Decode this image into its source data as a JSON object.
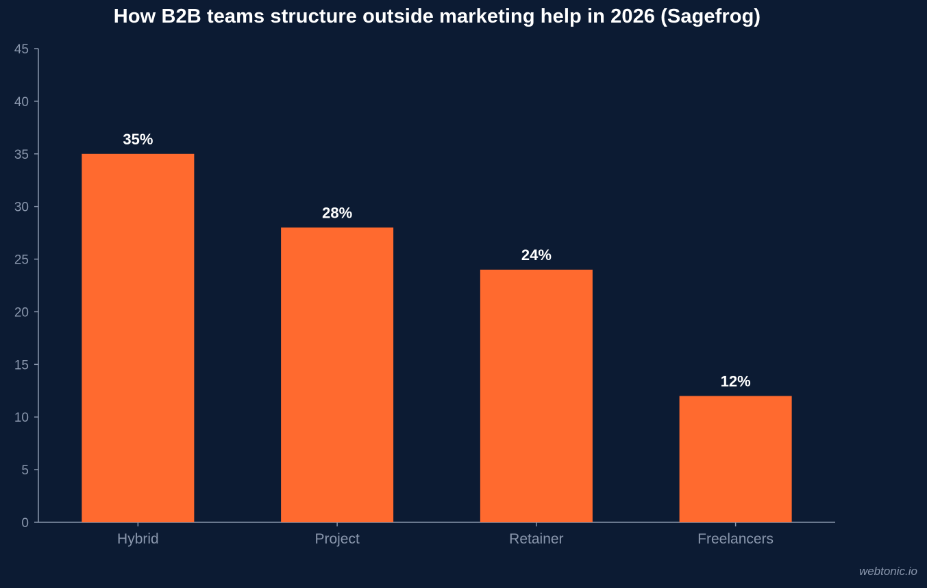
{
  "chart_data": {
    "type": "bar",
    "title": "How B2B teams structure outside marketing help in 2026 (Sagefrog)",
    "categories": [
      "Hybrid",
      "Project",
      "Retainer",
      "Freelancers"
    ],
    "values": [
      35,
      28,
      24,
      12
    ],
    "data_labels": [
      "35%",
      "28%",
      "24%",
      "12%"
    ],
    "ylim": [
      0,
      45
    ],
    "yticks": [
      0,
      5,
      10,
      15,
      20,
      25,
      30,
      35,
      40,
      45
    ],
    "xlabel": "",
    "ylabel": "",
    "grid": false,
    "legend": "none",
    "colors": {
      "background": "#0c1b33",
      "bar": "#ff6a2f",
      "axis": "#8a97ad",
      "text": "#ffffff"
    }
  },
  "watermark": "webtonic.io"
}
